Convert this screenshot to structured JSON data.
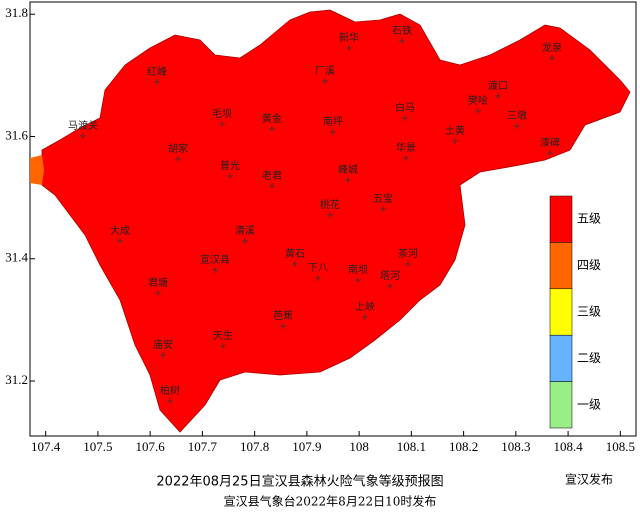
{
  "map": {
    "title": "2022年08月25日宣汉县森林火险气象等级预报图",
    "subtitle": "宣汉县气象台2022年8月22日10时发布",
    "watermark": "宣汉发布",
    "xlim": [
      107.37,
      108.53
    ],
    "ylim": [
      31.11,
      31.82
    ],
    "xticks": [
      107.4,
      107.5,
      107.6,
      107.7,
      107.8,
      107.9,
      108,
      108.1,
      108.2,
      108.3,
      108.4,
      108.5
    ],
    "yticks": [
      31.2,
      31.4,
      31.6,
      31.8
    ],
    "legend": [
      {
        "name": "五级",
        "color": "#ff0000"
      },
      {
        "name": "四级",
        "color": "#ff6600"
      },
      {
        "name": "三级",
        "color": "#ffff00"
      },
      {
        "name": "二级",
        "color": "#66b3ff"
      },
      {
        "name": "一级",
        "color": "#99ee88"
      }
    ],
    "places": [
      "新华",
      "石铁",
      "龙泉",
      "渡口",
      "樊哙",
      "三墩",
      "漆碑",
      "土黄",
      "白马",
      "华景",
      "厂溪",
      "红峰",
      "马渡关",
      "毛坝",
      "黄金",
      "南坪",
      "胡家",
      "普光",
      "老君",
      "峰城",
      "五宝",
      "桃花",
      "大成",
      "清溪",
      "宣汉县",
      "黄石",
      "茶河",
      "下八",
      "南坝",
      "塔河",
      "君塘",
      "上峡",
      "芭蕉",
      "天生",
      "庙安",
      "柏树"
    ]
  }
}
